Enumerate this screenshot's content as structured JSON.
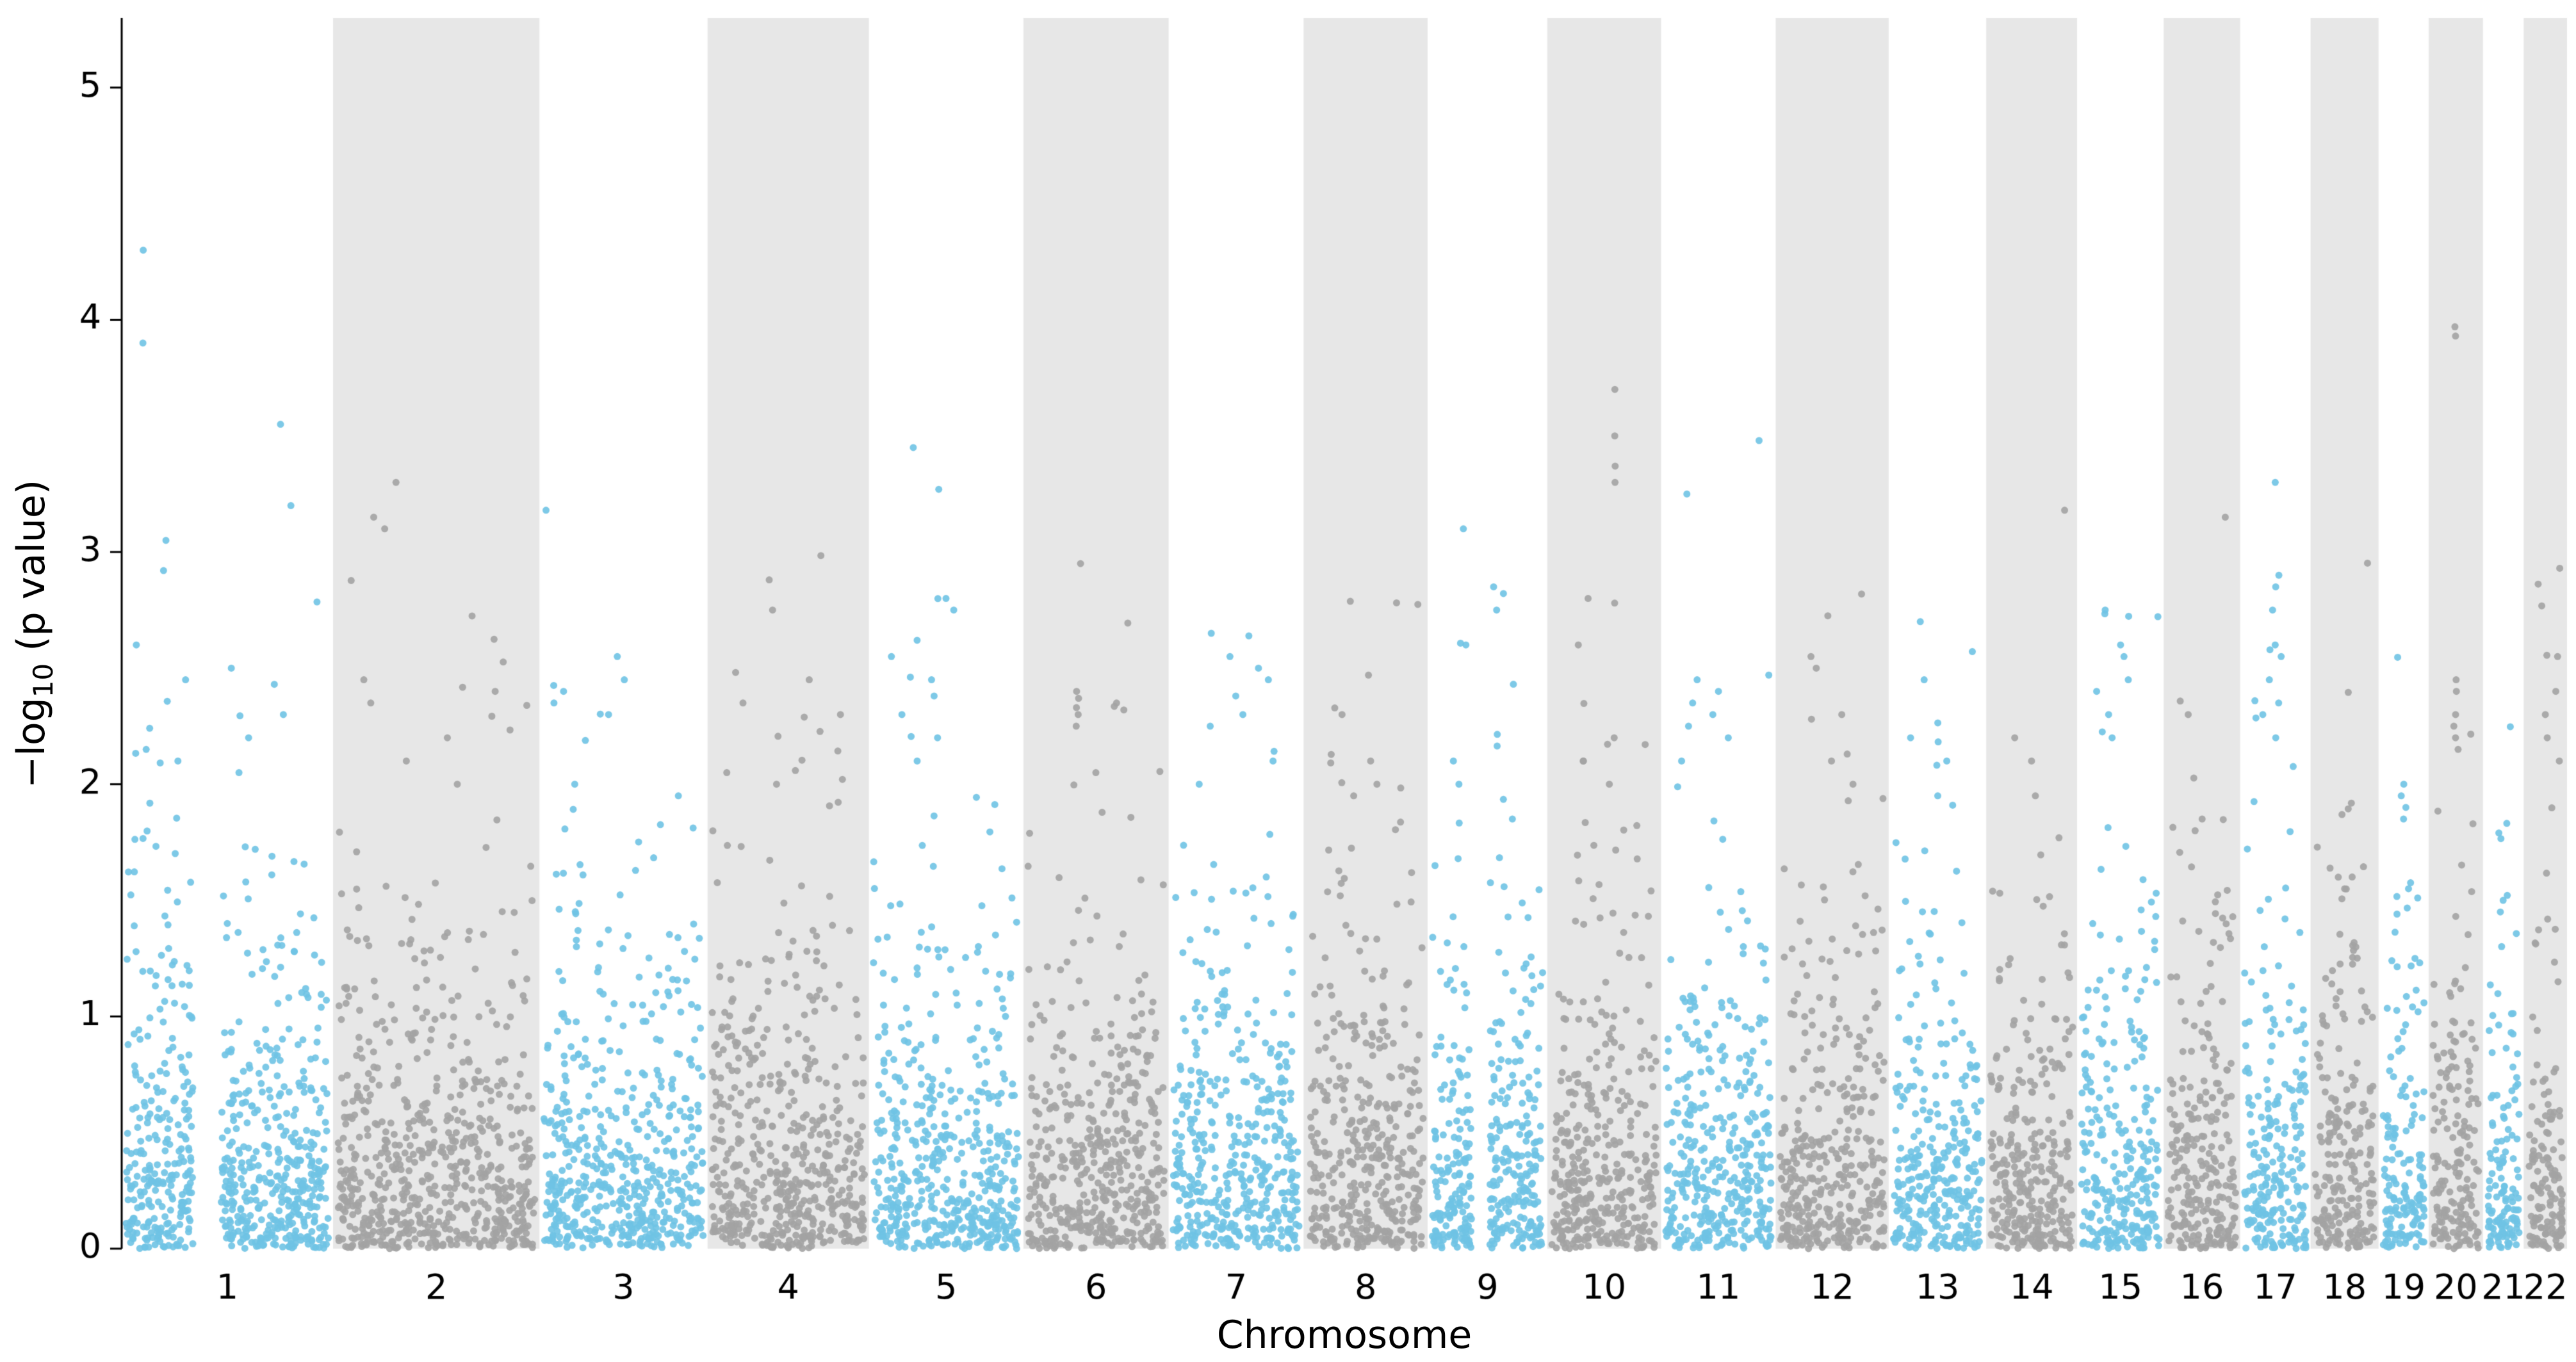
{
  "chart_data": {
    "type": "scatter",
    "subtype": "manhattan",
    "title": "",
    "xlabel": "Chromosome",
    "ylabel": "−log10 (p value)",
    "ylabel_parts": {
      "prefix": "−log",
      "sub": "10",
      "suffix": " (p value)"
    },
    "ylim": [
      0,
      5.3
    ],
    "yticks": [
      0,
      1,
      2,
      3,
      4,
      5
    ],
    "x_tick_labels": [
      "1",
      "2",
      "3",
      "4",
      "5",
      "6",
      "7",
      "8",
      "9",
      "10",
      "11",
      "12",
      "13",
      "14",
      "15",
      "16",
      "17",
      "18",
      "19",
      "20",
      "21",
      "22"
    ],
    "grid": false,
    "legend": "none",
    "colors": {
      "odd_chrom": "#6FC3E4",
      "even_chrom": "#A3A3A3",
      "band": "#E7E7E7",
      "axis": "#000000",
      "text": "#000000",
      "background": "#FFFFFF"
    },
    "marker": {
      "radius": 5.5,
      "opacity": 0.9
    },
    "chromosomes": [
      {
        "label": "1",
        "size_mb": 249,
        "n_points": 697,
        "gaps": [
          [
            0.33,
            0.47
          ]
        ],
        "peaks": [
          [
            4.3,
            0.09
          ],
          [
            3.9,
            0.085
          ],
          [
            3.55,
            0.76
          ],
          [
            3.2,
            0.81
          ],
          [
            3.05,
            0.2
          ],
          [
            2.92,
            0.18
          ],
          [
            2.6,
            0.05
          ],
          [
            2.5,
            0.52
          ],
          [
            2.45,
            0.3
          ],
          [
            2.3,
            0.78
          ],
          [
            2.2,
            0.6
          ],
          [
            2.15,
            0.1
          ],
          [
            2.1,
            0.26
          ],
          [
            2.05,
            0.55
          ]
        ]
      },
      {
        "label": "2",
        "size_mb": 243,
        "n_points": 680,
        "gaps": [],
        "peaks": [
          [
            3.3,
            0.3
          ],
          [
            3.15,
            0.18
          ],
          [
            3.1,
            0.24
          ],
          [
            2.45,
            0.14
          ],
          [
            2.4,
            0.8
          ],
          [
            2.35,
            0.17
          ],
          [
            2.2,
            0.55
          ],
          [
            2.1,
            0.35
          ],
          [
            2.0,
            0.6
          ]
        ]
      },
      {
        "label": "3",
        "size_mb": 198,
        "n_points": 554,
        "gaps": [],
        "peaks": [
          [
            3.18,
            0.02
          ],
          [
            2.55,
            0.46
          ],
          [
            2.45,
            0.5
          ],
          [
            2.4,
            0.12
          ],
          [
            2.35,
            0.06
          ],
          [
            2.3,
            0.4
          ],
          [
            2.0,
            0.2
          ],
          [
            1.95,
            0.85
          ]
        ]
      },
      {
        "label": "4",
        "size_mb": 190,
        "n_points": 532,
        "gaps": [],
        "peaks": [
          [
            2.88,
            0.37
          ],
          [
            2.75,
            0.4
          ],
          [
            2.45,
            0.64
          ],
          [
            2.35,
            0.2
          ],
          [
            2.3,
            0.85
          ],
          [
            2.05,
            0.1
          ],
          [
            2.0,
            0.42
          ]
        ]
      },
      {
        "label": "5",
        "size_mb": 182,
        "n_points": 510,
        "gaps": [],
        "peaks": [
          [
            3.45,
            0.28
          ],
          [
            3.27,
            0.45
          ],
          [
            2.8,
            0.5
          ],
          [
            2.75,
            0.55
          ],
          [
            2.62,
            0.3
          ],
          [
            2.55,
            0.12
          ],
          [
            2.45,
            0.4
          ],
          [
            2.38,
            0.42
          ],
          [
            2.3,
            0.2
          ],
          [
            2.2,
            0.44
          ],
          [
            2.1,
            0.3
          ]
        ]
      },
      {
        "label": "6",
        "size_mb": 171,
        "n_points": 479,
        "gaps": [],
        "peaks": [
          [
            2.95,
            0.38
          ],
          [
            2.4,
            0.36
          ],
          [
            2.37,
            0.37
          ],
          [
            2.33,
            0.36
          ],
          [
            2.3,
            0.37
          ],
          [
            2.25,
            0.36
          ],
          [
            2.35,
            0.65
          ],
          [
            2.32,
            0.7
          ],
          [
            2.05,
            0.5
          ]
        ]
      },
      {
        "label": "7",
        "size_mb": 159,
        "n_points": 445,
        "gaps": [],
        "peaks": [
          [
            2.65,
            0.3
          ],
          [
            2.55,
            0.45
          ],
          [
            2.5,
            0.68
          ],
          [
            2.45,
            0.75
          ],
          [
            2.38,
            0.5
          ],
          [
            2.3,
            0.55
          ],
          [
            2.25,
            0.3
          ],
          [
            2.1,
            0.8
          ],
          [
            2.0,
            0.2
          ]
        ]
      },
      {
        "label": "8",
        "size_mb": 146,
        "n_points": 409,
        "gaps": [],
        "peaks": [
          [
            2.47,
            0.52
          ],
          [
            2.3,
            0.3
          ],
          [
            2.1,
            0.55
          ],
          [
            2.0,
            0.6
          ],
          [
            1.95,
            0.4
          ]
        ]
      },
      {
        "label": "9",
        "size_mb": 141,
        "n_points": 395,
        "gaps": [
          [
            0.36,
            0.52
          ]
        ],
        "peaks": [
          [
            3.1,
            0.28
          ],
          [
            2.85,
            0.55
          ],
          [
            2.75,
            0.58
          ],
          [
            2.6,
            0.3
          ],
          [
            2.1,
            0.2
          ],
          [
            2.0,
            0.25
          ]
        ]
      },
      {
        "label": "10",
        "size_mb": 134,
        "n_points": 375,
        "gaps": [],
        "peaks": [
          [
            3.7,
            0.6
          ],
          [
            3.5,
            0.6
          ],
          [
            3.37,
            0.6
          ],
          [
            3.3,
            0.6
          ],
          [
            2.8,
            0.35
          ],
          [
            2.78,
            0.6
          ],
          [
            2.6,
            0.25
          ],
          [
            2.2,
            0.6
          ],
          [
            2.1,
            0.3
          ],
          [
            2.0,
            0.55
          ]
        ]
      },
      {
        "label": "11",
        "size_mb": 135,
        "n_points": 378,
        "gaps": [],
        "peaks": [
          [
            3.48,
            0.88
          ],
          [
            3.25,
            0.2
          ],
          [
            2.45,
            0.3
          ],
          [
            2.4,
            0.5
          ],
          [
            2.35,
            0.25
          ],
          [
            2.3,
            0.45
          ],
          [
            2.25,
            0.22
          ],
          [
            2.2,
            0.6
          ],
          [
            2.1,
            0.15
          ]
        ]
      },
      {
        "label": "12",
        "size_mb": 133,
        "n_points": 372,
        "gaps": [],
        "peaks": [
          [
            2.55,
            0.3
          ],
          [
            2.5,
            0.35
          ],
          [
            2.3,
            0.6
          ],
          [
            2.28,
            0.3
          ],
          [
            2.1,
            0.5
          ],
          [
            2.0,
            0.7
          ]
        ]
      },
      {
        "label": "13",
        "size_mb": 115,
        "n_points": 322,
        "gaps": [],
        "peaks": [
          [
            2.7,
            0.3
          ],
          [
            2.45,
            0.35
          ],
          [
            2.2,
            0.2
          ],
          [
            2.1,
            0.6
          ],
          [
            1.95,
            0.5
          ]
        ]
      },
      {
        "label": "14",
        "size_mb": 107,
        "n_points": 300,
        "gaps": [],
        "peaks": [
          [
            3.18,
            0.9
          ],
          [
            2.2,
            0.3
          ],
          [
            2.1,
            0.5
          ],
          [
            1.95,
            0.55
          ]
        ]
      },
      {
        "label": "15",
        "size_mb": 102,
        "n_points": 286,
        "gaps": [],
        "peaks": [
          [
            2.75,
            0.3
          ],
          [
            2.6,
            0.5
          ],
          [
            2.55,
            0.55
          ],
          [
            2.45,
            0.6
          ],
          [
            2.4,
            0.2
          ],
          [
            2.3,
            0.35
          ],
          [
            2.2,
            0.4
          ]
        ]
      },
      {
        "label": "16",
        "size_mb": 90,
        "n_points": 252,
        "gaps": [],
        "peaks": [
          [
            3.15,
            0.85
          ],
          [
            2.3,
            0.3
          ],
          [
            1.85,
            0.5
          ],
          [
            1.8,
            0.4
          ]
        ]
      },
      {
        "label": "17",
        "size_mb": 83,
        "n_points": 232,
        "gaps": [],
        "peaks": [
          [
            3.3,
            0.5
          ],
          [
            2.9,
            0.55
          ],
          [
            2.85,
            0.5
          ],
          [
            2.75,
            0.45
          ],
          [
            2.6,
            0.5
          ],
          [
            2.55,
            0.6
          ],
          [
            2.45,
            0.4
          ],
          [
            2.35,
            0.55
          ],
          [
            2.3,
            0.3
          ],
          [
            2.2,
            0.5
          ]
        ]
      },
      {
        "label": "18",
        "size_mb": 80,
        "n_points": 224,
        "gaps": [],
        "peaks": [
          [
            1.6,
            0.4
          ],
          [
            1.55,
            0.5
          ]
        ]
      },
      {
        "label": "19",
        "size_mb": 59,
        "n_points": 165,
        "gaps": [],
        "peaks": [
          [
            2.0,
            0.5
          ],
          [
            1.95,
            0.45
          ],
          [
            1.9,
            0.55
          ],
          [
            1.85,
            0.5
          ]
        ]
      },
      {
        "label": "20",
        "size_mb": 64,
        "n_points": 179,
        "gaps": [],
        "peaks": [
          [
            3.97,
            0.48
          ],
          [
            3.93,
            0.5
          ],
          [
            2.45,
            0.5
          ],
          [
            2.4,
            0.52
          ],
          [
            2.3,
            0.5
          ],
          [
            2.25,
            0.45
          ],
          [
            2.2,
            0.5
          ],
          [
            2.15,
            0.55
          ]
        ]
      },
      {
        "label": "21",
        "size_mb": 48,
        "n_points": 134,
        "gaps": [],
        "peaks": [
          [
            1.5,
            0.5
          ],
          [
            1.45,
            0.4
          ]
        ]
      },
      {
        "label": "22",
        "size_mb": 51,
        "n_points": 143,
        "gaps": [],
        "peaks": [
          [
            2.93,
            0.92
          ],
          [
            2.55,
            0.85
          ],
          [
            2.4,
            0.8
          ],
          [
            2.3,
            0.5
          ],
          [
            2.2,
            0.55
          ],
          [
            2.1,
            0.9
          ]
        ]
      }
    ]
  }
}
